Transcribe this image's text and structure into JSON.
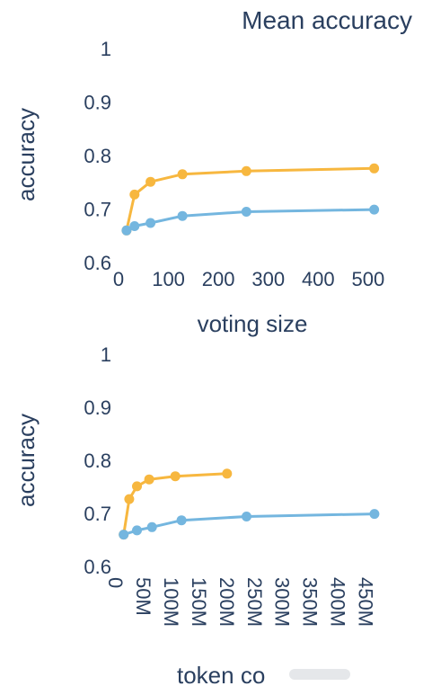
{
  "colors": {
    "text": "#2a3f5f",
    "blue": "#74b6df",
    "orange": "#f7b73f"
  },
  "chart_data": [
    {
      "type": "line",
      "title": "Mean accuracy",
      "xlabel": "voting size",
      "ylabel": "accuracy",
      "xlim": [
        0,
        520
      ],
      "ylim": [
        0.6,
        1.0
      ],
      "x_ticks": [
        "0",
        "100",
        "200",
        "300",
        "400",
        "500"
      ],
      "x_tick_values": [
        0,
        100,
        200,
        300,
        400,
        500
      ],
      "y_ticks": [
        "0.6",
        "0.7",
        "0.8",
        "0.9",
        "1"
      ],
      "y_tick_values": [
        0.6,
        0.7,
        0.8,
        0.9,
        1.0
      ],
      "grid": false,
      "series": [
        {
          "color": "#f7b73f",
          "x": [
            16,
            32,
            64,
            128,
            256,
            512
          ],
          "y": [
            0.66,
            0.727,
            0.751,
            0.765,
            0.771,
            0.776
          ]
        },
        {
          "color": "#74b6df",
          "x": [
            16,
            32,
            64,
            128,
            256,
            512
          ],
          "y": [
            0.66,
            0.668,
            0.674,
            0.687,
            0.695,
            0.699
          ]
        }
      ]
    },
    {
      "type": "line",
      "title": "",
      "xlabel": "token co",
      "ylabel": "accuracy",
      "xlim": [
        0,
        470
      ],
      "ylim": [
        0.6,
        1.0
      ],
      "x_ticks": [
        "0",
        "50M",
        "100M",
        "150M",
        "200M",
        "250M",
        "300M",
        "350M",
        "400M",
        "450M"
      ],
      "x_tick_values": [
        0,
        50,
        100,
        150,
        200,
        250,
        300,
        350,
        400,
        450
      ],
      "y_ticks": [
        "0.6",
        "0.7",
        "0.8",
        "0.9",
        "1"
      ],
      "y_tick_values": [
        0.6,
        0.7,
        0.8,
        0.9,
        1.0
      ],
      "grid": false,
      "series": [
        {
          "color": "#f7b73f",
          "x": [
            14,
            24,
            38,
            60,
            107,
            200
          ],
          "y": [
            0.66,
            0.727,
            0.751,
            0.764,
            0.77,
            0.775
          ]
        },
        {
          "color": "#74b6df",
          "x": [
            14,
            38,
            65,
            118,
            235,
            465
          ],
          "y": [
            0.66,
            0.668,
            0.674,
            0.687,
            0.694,
            0.699
          ]
        }
      ]
    }
  ]
}
